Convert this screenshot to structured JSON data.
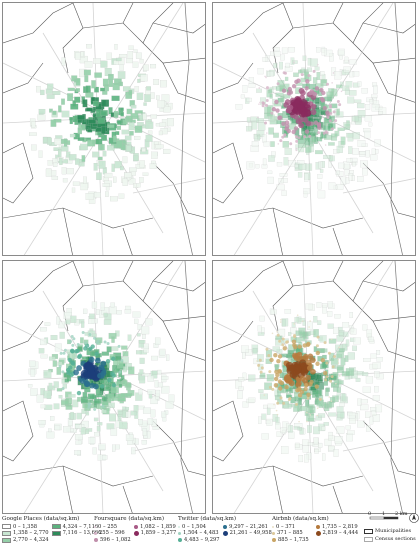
{
  "legends": {
    "google": {
      "title": "Google Places (data/sq.km)",
      "items": [
        {
          "label": "0 – 1,358",
          "color": "#ffffff"
        },
        {
          "label": "1,358 – 2,770",
          "color": "#c8e6d2"
        },
        {
          "label": "2,770 – 4,324",
          "color": "#94cfa8"
        },
        {
          "label": "4,324 – 7,116",
          "color": "#5cb37f"
        },
        {
          "label": "7,116 – 13,666",
          "color": "#2e8b5a"
        }
      ]
    },
    "foursquare": {
      "title": "Foursquare (data/sq.km)",
      "items": [
        {
          "label": "0 – 255",
          "color": "#e3d0db"
        },
        {
          "label": "255 – 596",
          "color": "#d4b3c6"
        },
        {
          "label": "596 – 1,082",
          "color": "#c08fab"
        },
        {
          "label": "1,082 – 1,859",
          "color": "#a85a86"
        },
        {
          "label": "1,859 – 3,277",
          "color": "#8a2a5e"
        }
      ]
    },
    "twitter": {
      "title": "Twitter (data/sq.km)",
      "items": [
        {
          "label": "0 – 1,504",
          "color": "#d6ece3"
        },
        {
          "label": "1,504 – 4,483",
          "color": "#9fd2c0"
        },
        {
          "label": "4,483 – 9,297",
          "color": "#55b096"
        },
        {
          "label": "9,297 – 21,261",
          "color": "#2b6f8f"
        },
        {
          "label": "21,261 – 49,958",
          "color": "#1d3f7a"
        }
      ]
    },
    "airbnb": {
      "title": "Airbnb (data/sq.km)",
      "items": [
        {
          "label": "0 – 371",
          "color": "#e8e0c8"
        },
        {
          "label": "371 – 885",
          "color": "#dcc89a"
        },
        {
          "label": "885 – 1,735",
          "color": "#c9a565"
        },
        {
          "label": "1,735 – 2,819",
          "color": "#b57a3e"
        },
        {
          "label": "2,819 – 4,444",
          "color": "#8c4a1e"
        }
      ]
    },
    "boundaries": [
      {
        "label": "Municipalities"
      },
      {
        "label": "Census sections"
      }
    ]
  },
  "scale": {
    "ticks": [
      "0",
      "1",
      "2 km"
    ]
  },
  "colors": {
    "land": "#ffffff",
    "road": "#d4d4d4",
    "boundary": "#555555"
  }
}
